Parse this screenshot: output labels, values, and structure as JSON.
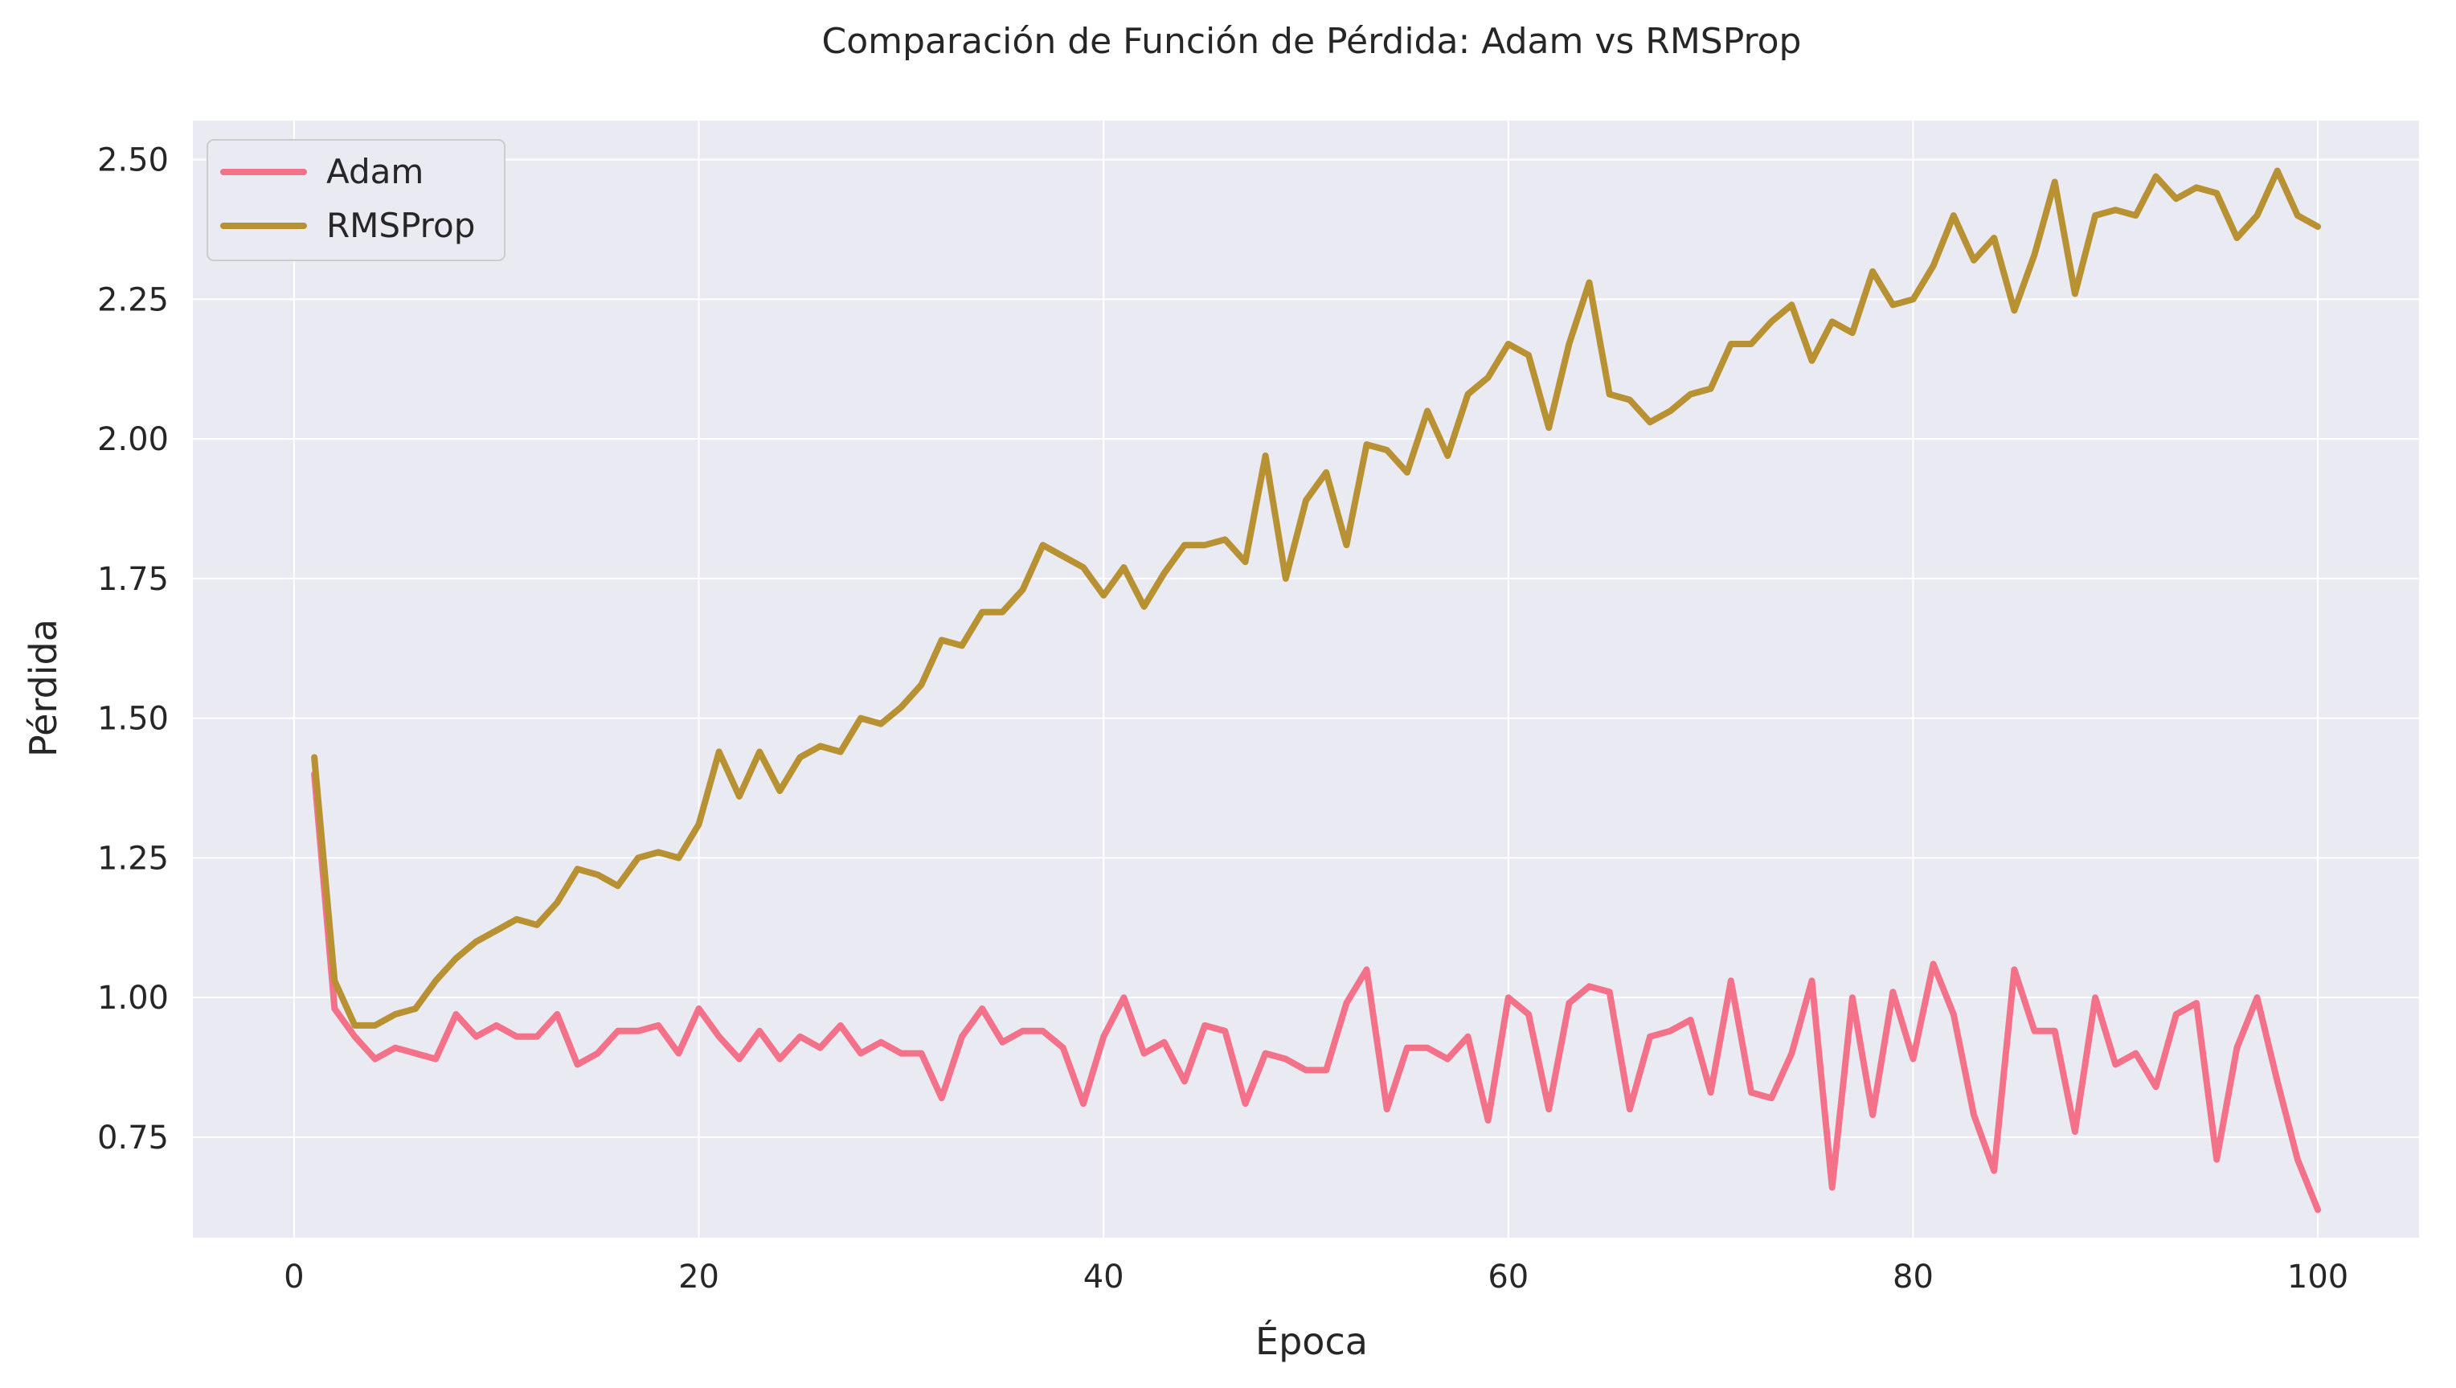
{
  "chart_data": {
    "type": "line",
    "title": "Comparación de Función de Pérdida: Adam vs RMSProp",
    "xlabel": "Época",
    "ylabel": "Pérdida",
    "xlim": [
      -5,
      105
    ],
    "ylim": [
      0.57,
      2.57
    ],
    "xticks": [
      0,
      20,
      40,
      60,
      80,
      100
    ],
    "xtick_labels": [
      "0",
      "20",
      "40",
      "60",
      "80",
      "100"
    ],
    "yticks": [
      0.75,
      1.0,
      1.25,
      1.5,
      1.75,
      2.0,
      2.25,
      2.5
    ],
    "ytick_labels": [
      "0.75",
      "1.00",
      "1.25",
      "1.50",
      "1.75",
      "2.00",
      "2.25",
      "2.50"
    ],
    "grid": true,
    "legend_position": "top-left",
    "background_color": "#eaeaf2",
    "x": [
      1,
      2,
      3,
      4,
      5,
      6,
      7,
      8,
      9,
      10,
      11,
      12,
      13,
      14,
      15,
      16,
      17,
      18,
      19,
      20,
      21,
      22,
      23,
      24,
      25,
      26,
      27,
      28,
      29,
      30,
      31,
      32,
      33,
      34,
      35,
      36,
      37,
      38,
      39,
      40,
      41,
      42,
      43,
      44,
      45,
      46,
      47,
      48,
      49,
      50,
      51,
      52,
      53,
      54,
      55,
      56,
      57,
      58,
      59,
      60,
      61,
      62,
      63,
      64,
      65,
      66,
      67,
      68,
      69,
      70,
      71,
      72,
      73,
      74,
      75,
      76,
      77,
      78,
      79,
      80,
      81,
      82,
      83,
      84,
      85,
      86,
      87,
      88,
      89,
      90,
      91,
      92,
      93,
      94,
      95,
      96,
      97,
      98,
      99,
      100
    ],
    "series": [
      {
        "name": "Adam",
        "color": "#f37289",
        "values": [
          1.4,
          0.98,
          0.93,
          0.89,
          0.91,
          0.9,
          0.89,
          0.97,
          0.93,
          0.95,
          0.93,
          0.93,
          0.97,
          0.88,
          0.9,
          0.94,
          0.94,
          0.95,
          0.9,
          0.98,
          0.93,
          0.89,
          0.94,
          0.89,
          0.93,
          0.91,
          0.95,
          0.9,
          0.92,
          0.9,
          0.9,
          0.82,
          0.93,
          0.98,
          0.92,
          0.94,
          0.94,
          0.91,
          0.81,
          0.93,
          1.0,
          0.9,
          0.92,
          0.85,
          0.95,
          0.94,
          0.81,
          0.9,
          0.89,
          0.87,
          0.87,
          0.99,
          1.05,
          0.8,
          0.91,
          0.91,
          0.89,
          0.93,
          0.78,
          1.0,
          0.97,
          0.8,
          0.99,
          1.02,
          1.01,
          0.8,
          0.93,
          0.94,
          0.96,
          0.83,
          1.03,
          0.83,
          0.82,
          0.9,
          1.03,
          0.66,
          1.0,
          0.79,
          1.01,
          0.89,
          1.06,
          0.97,
          0.79,
          0.69,
          1.05,
          0.94,
          0.94,
          0.76,
          1.0,
          0.88,
          0.9,
          0.84,
          0.97,
          0.99,
          0.71,
          0.91,
          1.0,
          0.85,
          0.71,
          0.62
        ]
      },
      {
        "name": "RMSProp",
        "color": "#b89132",
        "values": [
          1.43,
          1.03,
          0.95,
          0.95,
          0.97,
          0.98,
          1.03,
          1.07,
          1.1,
          1.12,
          1.14,
          1.13,
          1.17,
          1.23,
          1.22,
          1.2,
          1.25,
          1.26,
          1.25,
          1.31,
          1.44,
          1.36,
          1.44,
          1.37,
          1.43,
          1.45,
          1.44,
          1.5,
          1.49,
          1.52,
          1.56,
          1.64,
          1.63,
          1.69,
          1.69,
          1.73,
          1.81,
          1.79,
          1.77,
          1.72,
          1.77,
          1.7,
          1.76,
          1.81,
          1.81,
          1.82,
          1.78,
          1.97,
          1.75,
          1.89,
          1.94,
          1.81,
          1.99,
          1.98,
          1.94,
          2.05,
          1.97,
          2.08,
          2.11,
          2.17,
          2.15,
          2.02,
          2.17,
          2.28,
          2.08,
          2.07,
          2.03,
          2.05,
          2.08,
          2.09,
          2.17,
          2.17,
          2.21,
          2.24,
          2.14,
          2.21,
          2.19,
          2.3,
          2.24,
          2.25,
          2.31,
          2.4,
          2.32,
          2.36,
          2.23,
          2.33,
          2.46,
          2.26,
          2.4,
          2.41,
          2.4,
          2.47,
          2.43,
          2.45,
          2.44,
          2.36,
          2.4,
          2.48,
          2.4,
          2.38
        ]
      }
    ]
  }
}
